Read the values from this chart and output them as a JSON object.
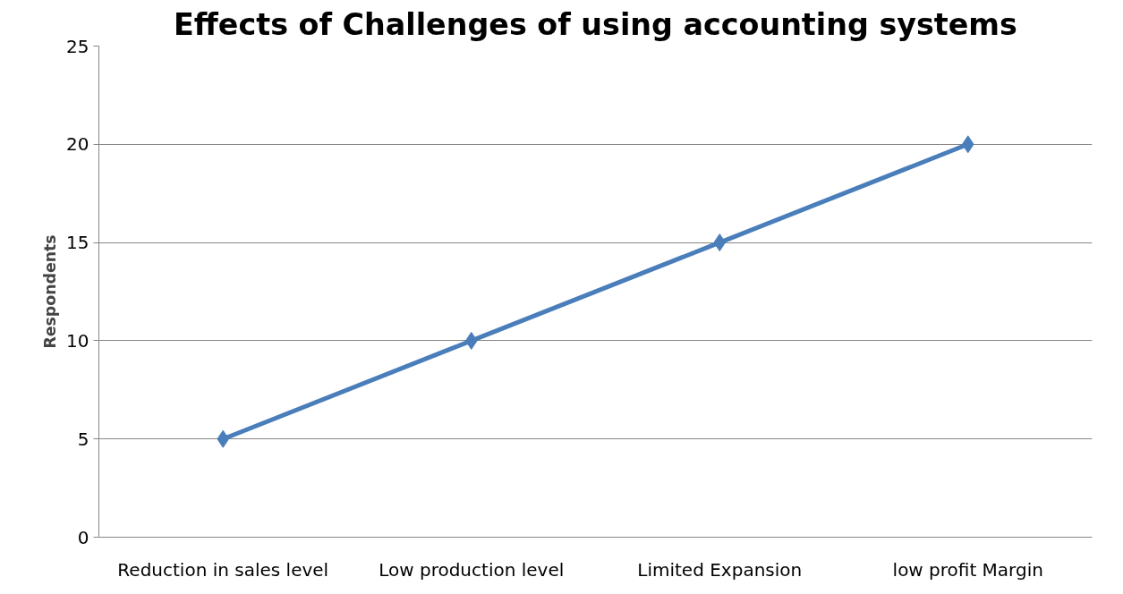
{
  "chart_data": {
    "type": "line",
    "title": "Effects of Challenges of using accounting systems",
    "ylabel": "Respondents",
    "categories": [
      "Reduction in sales level",
      "Low production level",
      "Limited Expansion",
      "low profit Margin"
    ],
    "series": [
      {
        "color": "#4a7ebb",
        "values": [
          5,
          10,
          15,
          20
        ]
      }
    ],
    "ylim": [
      0,
      25
    ],
    "yticks": [
      0,
      5,
      10,
      15,
      20,
      25
    ],
    "grid": "y",
    "marker": "diamond",
    "line_style": "solid"
  }
}
